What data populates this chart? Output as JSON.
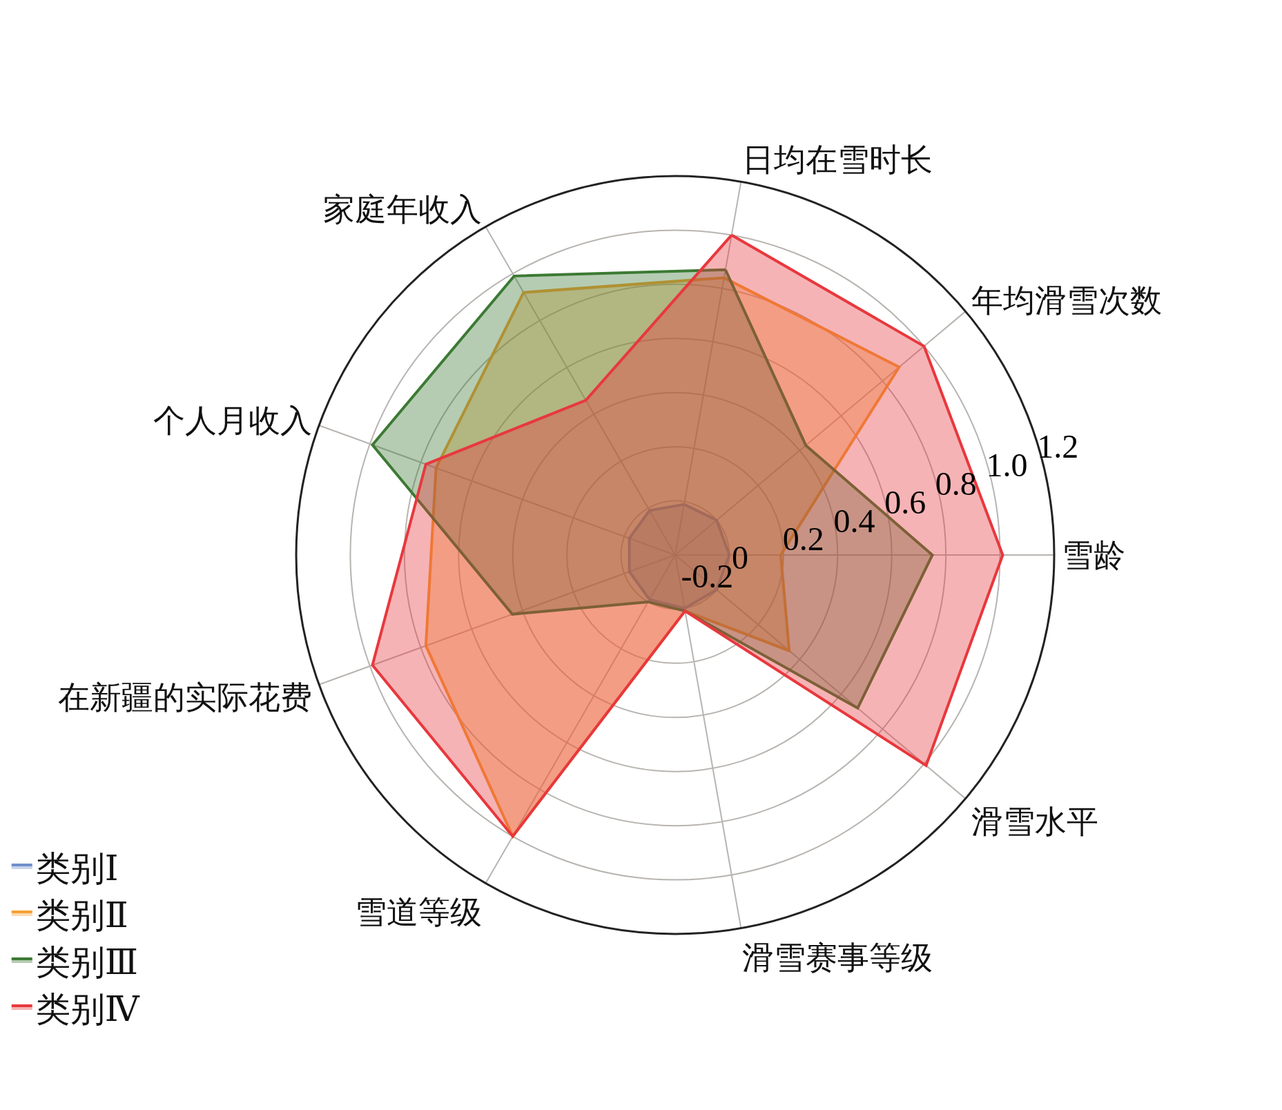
{
  "chart_data": {
    "type": "radar",
    "categories": [
      "日均在雪时长",
      "年均滑雪次数",
      "雪龄",
      "滑雪水平",
      "滑雪赛事等级",
      "雪道等级",
      "在新疆的实际花费",
      "个人月收入",
      "家庭年收入"
    ],
    "series": [
      {
        "name": "类别Ⅰ",
        "color": "#6f8fcb",
        "values": [
          -0.01,
          0,
          0,
          0,
          0,
          -0.01,
          -0.02,
          -0.02,
          -0.01
        ]
      },
      {
        "name": "类别Ⅱ",
        "color": "#f5a033",
        "values": [
          0.84,
          0.88,
          0.19,
          0.35,
          0.01,
          1.0,
          0.78,
          0.74,
          0.92
        ]
      },
      {
        "name": "类别Ⅲ",
        "color": "#3c7a34",
        "values": [
          0.87,
          0.43,
          0.75,
          0.68,
          0.01,
          0.0,
          0.44,
          0.99,
          0.99
        ]
      },
      {
        "name": "类别Ⅳ",
        "color": "#e8383d",
        "values": [
          1.0,
          1.0,
          1.01,
          1.01,
          0.01,
          1.0,
          0.99,
          0.78,
          0.46
        ]
      }
    ],
    "ylim": [
      -0.2,
      1.2
    ],
    "yticks": [
      -0.2,
      0,
      0.2,
      0.4,
      0.6,
      0.8,
      {
        "value": 1.0,
        "label": "1.0"
      },
      1.2
    ],
    "grid": true,
    "legend": "bottom left",
    "marker": "none",
    "line_style": "solid"
  }
}
